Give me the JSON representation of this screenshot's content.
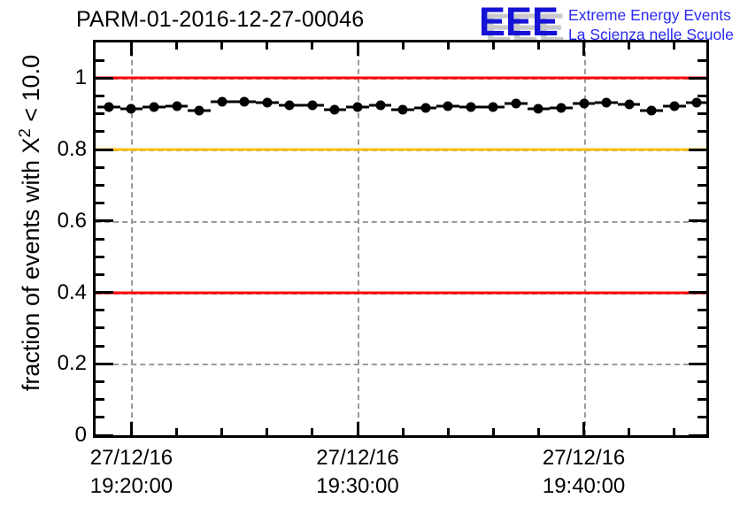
{
  "header": {
    "title": "PARM-01-2016-12-27-00046",
    "logo": {
      "acronym": "EEE",
      "line1": "Extreme Energy Events",
      "line2": "La Scienza nelle Scuole",
      "blue": "#1512d6",
      "shadow": "#c9c9c9"
    }
  },
  "chart_data": {
    "type": "scatter",
    "title": "PARM-01-2016-12-27-00046",
    "ylabel_prefix": "fraction of events with X",
    "ylabel_sup": "2",
    "ylabel_suffix": " < 10.0",
    "ylim": [
      0,
      1.1
    ],
    "grid": "dashed-gray-at-major-ticks",
    "grid_color": "#9a9a9a",
    "marker_color": "#000000",
    "y_major_ticks": [
      {
        "v": 0,
        "label": "0"
      },
      {
        "v": 0.2,
        "label": "0.2"
      },
      {
        "v": 0.4,
        "label": "0.4"
      },
      {
        "v": 0.6,
        "label": "0.6"
      },
      {
        "v": 0.8,
        "label": "0.8"
      },
      {
        "v": 1,
        "label": "1"
      }
    ],
    "y_minor_step": 0.05,
    "x_axis": {
      "date": "27/12/16",
      "start": "19:18:25",
      "end": "19:45:25"
    },
    "x_major_ticks": [
      {
        "date": "27/12/16",
        "time": "19:20:00"
      },
      {
        "date": "27/12/16",
        "time": "19:30:00"
      },
      {
        "date": "27/12/16",
        "time": "19:40:00"
      }
    ],
    "x_minor_first": "19:20:00",
    "x_minor_last": "19:44:00",
    "x_minor_step_min": 2,
    "ref_lines": [
      {
        "y": 1.0,
        "color": "#ff0000"
      },
      {
        "y": 0.8,
        "color": "#ffc000"
      },
      {
        "y": 0.4,
        "color": "#ff0000"
      }
    ],
    "x_err_seconds": 30,
    "points": [
      {
        "time": "19:19:00",
        "y": 0.919
      },
      {
        "time": "19:20:00",
        "y": 0.914
      },
      {
        "time": "19:21:00",
        "y": 0.92
      },
      {
        "time": "19:22:00",
        "y": 0.922
      },
      {
        "time": "19:23:00",
        "y": 0.91
      },
      {
        "time": "19:24:00",
        "y": 0.933
      },
      {
        "time": "19:25:00",
        "y": 0.933
      },
      {
        "time": "19:26:00",
        "y": 0.931
      },
      {
        "time": "19:27:00",
        "y": 0.925
      },
      {
        "time": "19:28:00",
        "y": 0.925
      },
      {
        "time": "19:29:00",
        "y": 0.912
      },
      {
        "time": "19:30:00",
        "y": 0.92
      },
      {
        "time": "19:31:00",
        "y": 0.925
      },
      {
        "time": "19:32:00",
        "y": 0.912
      },
      {
        "time": "19:33:00",
        "y": 0.917
      },
      {
        "time": "19:34:00",
        "y": 0.922
      },
      {
        "time": "19:35:00",
        "y": 0.918
      },
      {
        "time": "19:36:00",
        "y": 0.92
      },
      {
        "time": "19:37:00",
        "y": 0.928
      },
      {
        "time": "19:38:00",
        "y": 0.914
      },
      {
        "time": "19:39:00",
        "y": 0.916
      },
      {
        "time": "19:40:00",
        "y": 0.928
      },
      {
        "time": "19:41:00",
        "y": 0.931
      },
      {
        "time": "19:42:00",
        "y": 0.927
      },
      {
        "time": "19:43:00",
        "y": 0.909
      },
      {
        "time": "19:44:00",
        "y": 0.922
      },
      {
        "time": "19:45:00",
        "y": 0.931
      }
    ]
  }
}
